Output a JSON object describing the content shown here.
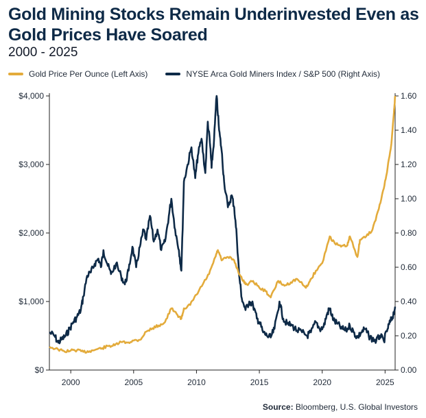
{
  "chart_data": {
    "type": "line",
    "title": "Gold Mining Stocks Remain Underinvested Even as Gold Prices Have Soared",
    "subtitle": "2000 - 2025",
    "source_label": "Source:",
    "source_text": "Bloomberg, U.S. Global Investors",
    "x_ticks": [
      "2000",
      "2005",
      "2010",
      "2015",
      "2020",
      "2025"
    ],
    "x_range": [
      1998.3,
      2025.8
    ],
    "y_left": {
      "ticks": [
        "$0",
        "$1,000",
        "$2,000",
        "$3,000",
        "$4,000"
      ],
      "tick_values": [
        0,
        1000,
        2000,
        3000,
        4000
      ],
      "range": [
        0,
        4000
      ]
    },
    "y_right": {
      "ticks": [
        "0.00",
        "0.20",
        "0.40",
        "0.60",
        "0.80",
        "1.00",
        "1.20",
        "1.40",
        "1.60"
      ],
      "tick_values": [
        0,
        0.2,
        0.4,
        0.6,
        0.8,
        1.0,
        1.2,
        1.4,
        1.6
      ],
      "range": [
        0,
        1.6
      ]
    },
    "colors": {
      "gold": "#e3ab3b",
      "miners": "#0e2a47",
      "axis": "#222222"
    },
    "series": [
      {
        "name": "Gold Price Per Ounce (Left Axis)",
        "axis": "left",
        "color": "#e3ab3b",
        "points": [
          [
            1998.3,
            340
          ],
          [
            1999.0,
            300
          ],
          [
            1999.5,
            270
          ],
          [
            2000.0,
            285
          ],
          [
            2000.5,
            290
          ],
          [
            2001.0,
            265
          ],
          [
            2001.5,
            275
          ],
          [
            2002.0,
            300
          ],
          [
            2002.5,
            320
          ],
          [
            2003.0,
            350
          ],
          [
            2003.5,
            360
          ],
          [
            2004.0,
            410
          ],
          [
            2004.5,
            400
          ],
          [
            2005.0,
            430
          ],
          [
            2005.5,
            440
          ],
          [
            2006.0,
            560
          ],
          [
            2006.5,
            610
          ],
          [
            2007.0,
            650
          ],
          [
            2007.5,
            700
          ],
          [
            2008.0,
            900
          ],
          [
            2008.5,
            800
          ],
          [
            2008.8,
            750
          ],
          [
            2009.0,
            900
          ],
          [
            2009.5,
            950
          ],
          [
            2010.0,
            1100
          ],
          [
            2010.5,
            1250
          ],
          [
            2011.0,
            1400
          ],
          [
            2011.5,
            1650
          ],
          [
            2011.7,
            1750
          ],
          [
            2012.0,
            1600
          ],
          [
            2012.5,
            1650
          ],
          [
            2013.0,
            1600
          ],
          [
            2013.3,
            1450
          ],
          [
            2013.7,
            1300
          ],
          [
            2014.0,
            1250
          ],
          [
            2014.5,
            1300
          ],
          [
            2015.0,
            1200
          ],
          [
            2015.5,
            1150
          ],
          [
            2015.9,
            1060
          ],
          [
            2016.5,
            1300
          ],
          [
            2017.0,
            1230
          ],
          [
            2017.5,
            1280
          ],
          [
            2018.0,
            1330
          ],
          [
            2018.7,
            1200
          ],
          [
            2019.0,
            1290
          ],
          [
            2019.5,
            1450
          ],
          [
            2020.0,
            1560
          ],
          [
            2020.6,
            1950
          ],
          [
            2021.0,
            1850
          ],
          [
            2021.5,
            1800
          ],
          [
            2022.0,
            1820
          ],
          [
            2022.2,
            1950
          ],
          [
            2022.8,
            1650
          ],
          [
            2023.0,
            1900
          ],
          [
            2023.5,
            1950
          ],
          [
            2024.0,
            2050
          ],
          [
            2024.5,
            2350
          ],
          [
            2024.9,
            2650
          ],
          [
            2025.2,
            2950
          ],
          [
            2025.5,
            3300
          ],
          [
            2025.7,
            3750
          ],
          [
            2025.8,
            4000
          ]
        ]
      },
      {
        "name": "NYSE Arca Gold Miners Index / S&P 500 (Right Axis)",
        "axis": "right",
        "color": "#0e2a47",
        "points": [
          [
            1998.3,
            0.22
          ],
          [
            1998.7,
            0.2
          ],
          [
            1999.0,
            0.16
          ],
          [
            1999.3,
            0.18
          ],
          [
            1999.6,
            0.2
          ],
          [
            1999.9,
            0.24
          ],
          [
            2000.2,
            0.28
          ],
          [
            2000.5,
            0.31
          ],
          [
            2000.8,
            0.35
          ],
          [
            2001.0,
            0.43
          ],
          [
            2001.3,
            0.55
          ],
          [
            2001.6,
            0.57
          ],
          [
            2001.9,
            0.62
          ],
          [
            2002.2,
            0.65
          ],
          [
            2002.4,
            0.6
          ],
          [
            2002.6,
            0.7
          ],
          [
            2002.9,
            0.62
          ],
          [
            2003.2,
            0.56
          ],
          [
            2003.6,
            0.62
          ],
          [
            2004.0,
            0.55
          ],
          [
            2004.3,
            0.5
          ],
          [
            2004.6,
            0.58
          ],
          [
            2004.9,
            0.72
          ],
          [
            2005.2,
            0.6
          ],
          [
            2005.5,
            0.72
          ],
          [
            2005.8,
            0.82
          ],
          [
            2006.0,
            0.76
          ],
          [
            2006.3,
            0.9
          ],
          [
            2006.6,
            0.75
          ],
          [
            2006.9,
            0.82
          ],
          [
            2007.2,
            0.7
          ],
          [
            2007.5,
            0.75
          ],
          [
            2007.8,
            0.9
          ],
          [
            2008.0,
            1.0
          ],
          [
            2008.3,
            0.82
          ],
          [
            2008.6,
            0.7
          ],
          [
            2008.8,
            0.58
          ],
          [
            2009.0,
            1.1
          ],
          [
            2009.3,
            1.2
          ],
          [
            2009.6,
            1.3
          ],
          [
            2009.9,
            1.12
          ],
          [
            2010.1,
            1.25
          ],
          [
            2010.4,
            1.35
          ],
          [
            2010.7,
            1.15
          ],
          [
            2010.9,
            1.45
          ],
          [
            2011.1,
            1.3
          ],
          [
            2011.2,
            1.18
          ],
          [
            2011.4,
            1.35
          ],
          [
            2011.6,
            1.6
          ],
          [
            2011.8,
            1.4
          ],
          [
            2012.0,
            1.28
          ],
          [
            2012.2,
            1.1
          ],
          [
            2012.5,
            0.95
          ],
          [
            2012.8,
            1.02
          ],
          [
            2013.0,
            0.95
          ],
          [
            2013.2,
            0.78
          ],
          [
            2013.4,
            0.55
          ],
          [
            2013.6,
            0.42
          ],
          [
            2013.9,
            0.35
          ],
          [
            2014.2,
            0.4
          ],
          [
            2014.5,
            0.38
          ],
          [
            2014.8,
            0.3
          ],
          [
            2015.0,
            0.28
          ],
          [
            2015.3,
            0.22
          ],
          [
            2015.6,
            0.2
          ],
          [
            2015.9,
            0.19
          ],
          [
            2016.2,
            0.24
          ],
          [
            2016.6,
            0.4
          ],
          [
            2016.9,
            0.3
          ],
          [
            2017.2,
            0.27
          ],
          [
            2017.6,
            0.26
          ],
          [
            2018.0,
            0.23
          ],
          [
            2018.4,
            0.22
          ],
          [
            2018.8,
            0.2
          ],
          [
            2019.1,
            0.22
          ],
          [
            2019.5,
            0.28
          ],
          [
            2019.8,
            0.24
          ],
          [
            2020.1,
            0.25
          ],
          [
            2020.4,
            0.33
          ],
          [
            2020.6,
            0.36
          ],
          [
            2020.9,
            0.29
          ],
          [
            2021.2,
            0.27
          ],
          [
            2021.6,
            0.24
          ],
          [
            2021.9,
            0.23
          ],
          [
            2022.2,
            0.26
          ],
          [
            2022.5,
            0.22
          ],
          [
            2022.8,
            0.19
          ],
          [
            2023.1,
            0.22
          ],
          [
            2023.4,
            0.24
          ],
          [
            2023.7,
            0.2
          ],
          [
            2024.0,
            0.18
          ],
          [
            2024.3,
            0.17
          ],
          [
            2024.6,
            0.2
          ],
          [
            2024.9,
            0.17
          ],
          [
            2025.2,
            0.24
          ],
          [
            2025.4,
            0.28
          ],
          [
            2025.6,
            0.31
          ],
          [
            2025.8,
            0.37
          ]
        ]
      }
    ]
  }
}
